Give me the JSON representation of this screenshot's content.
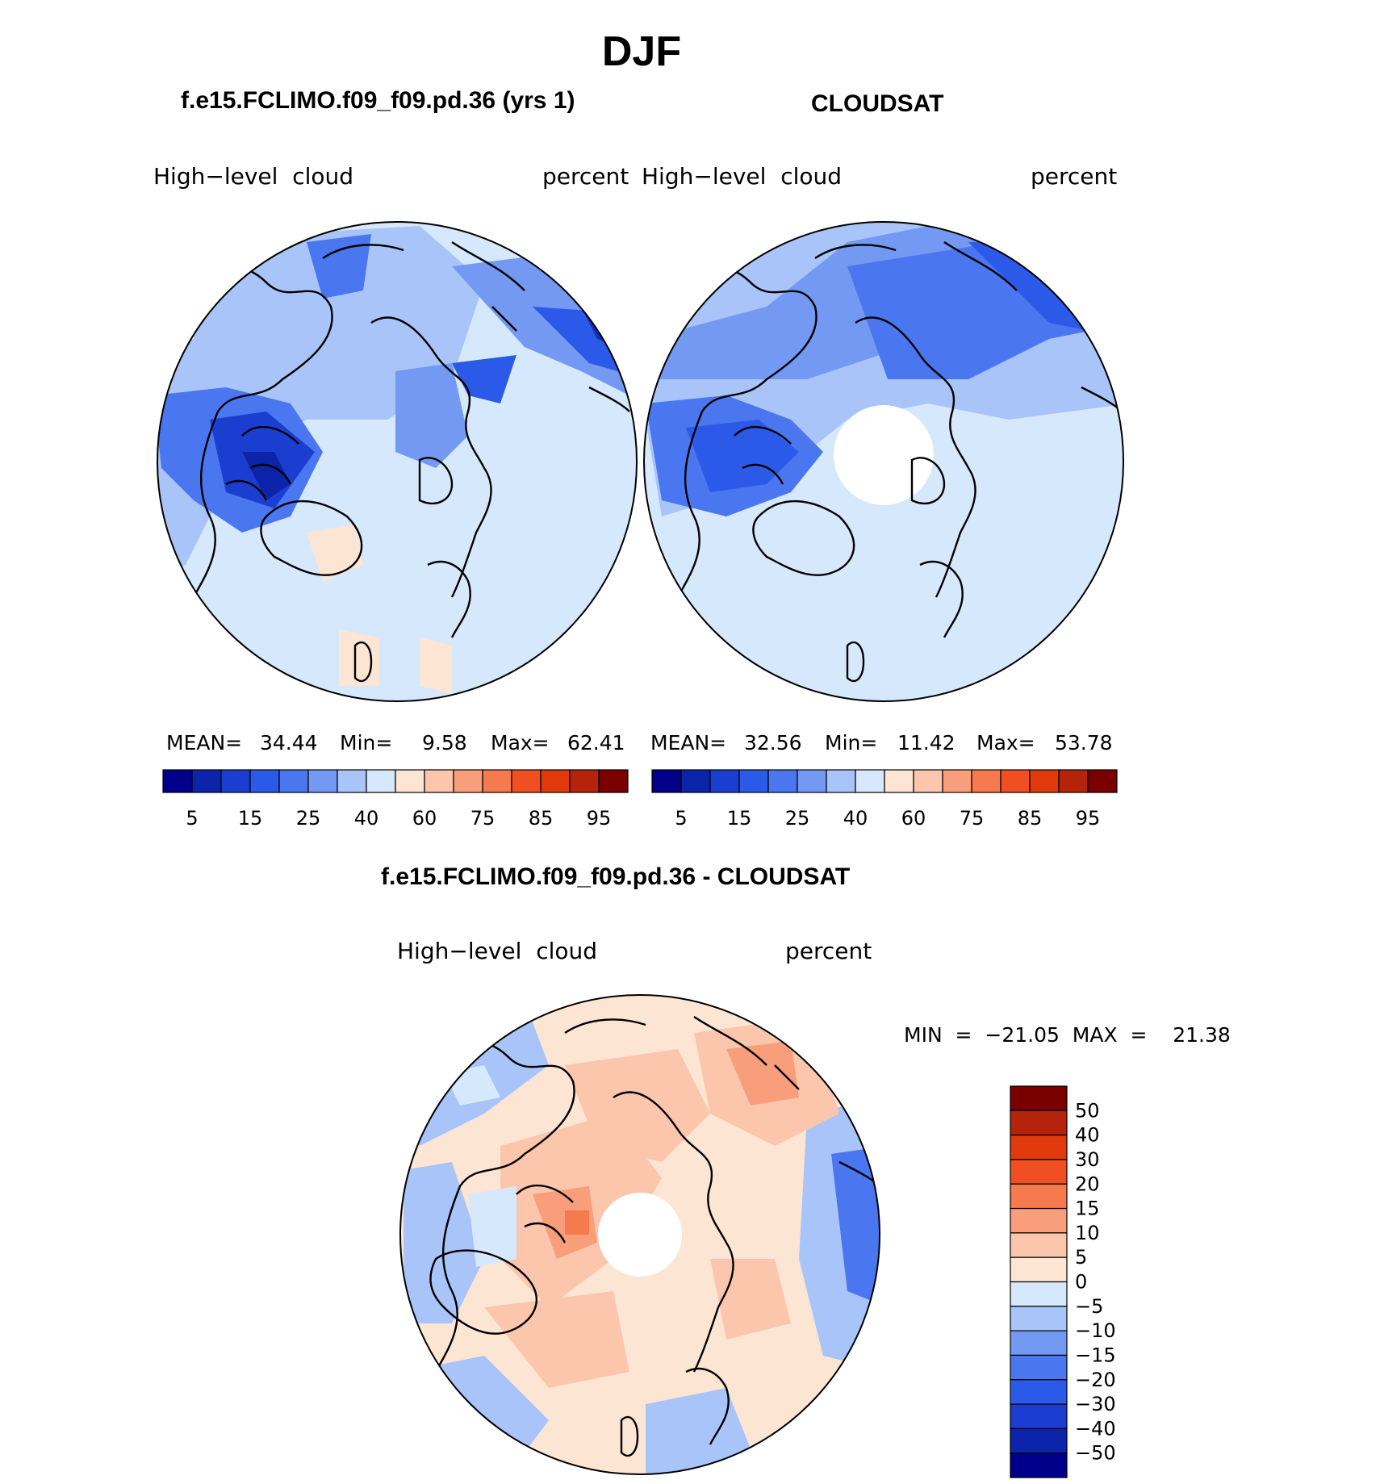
{
  "figure": {
    "title": "DJF",
    "bottom_title": "f.e15.FCLIMO.f09_f09.pd.36 - CLOUDSAT"
  },
  "panels": [
    {
      "title": "f.e15.FCLIMO.f09_f09.pd.36 (yrs 1)",
      "left_label": "High−level  cloud",
      "right_label": "percent",
      "stats": {
        "mean_label": "MEAN=",
        "mean": "34.44",
        "min_label": "Min=",
        "min": "9.58",
        "max_label": "Max=",
        "max": "62.41"
      }
    },
    {
      "title": "CLOUDSAT",
      "left_label": "High−level  cloud",
      "right_label": "percent",
      "stats": {
        "mean_label": "MEAN=",
        "mean": "32.56",
        "min_label": "Min=",
        "min": "11.42",
        "max_label": "Max=",
        "max": "53.78"
      }
    },
    {
      "title": "f.e15.FCLIMO.f09_f09.pd.36 - CLOUDSAT",
      "left_label": "High−level  cloud",
      "right_label": "percent",
      "stats_text": "MIN  =  −21.05  MAX  =    21.38"
    }
  ],
  "colorbar_abs": {
    "colors": [
      "#00008b",
      "#0b24a9",
      "#1a3fd0",
      "#2c5ae8",
      "#4a76f0",
      "#7399f3",
      "#a8c4f8",
      "#d6e8fb",
      "#fde5d4",
      "#fcc6ac",
      "#f89e7a",
      "#f57a4d",
      "#f04f22",
      "#e03a0c",
      "#b5230a",
      "#7a0000"
    ],
    "tick_labels": [
      "5",
      "15",
      "25",
      "40",
      "60",
      "75",
      "85",
      "95"
    ]
  },
  "colorbar_diff": {
    "colors": [
      "#00008b",
      "#0b24a9",
      "#1a3fd0",
      "#2c5ae8",
      "#4a76f0",
      "#7399f3",
      "#a8c4f8",
      "#d6e8fb",
      "#fde5d4",
      "#fcc6ac",
      "#f89e7a",
      "#f57a4d",
      "#f04f22",
      "#e03a0c",
      "#b5230a",
      "#7a0000"
    ],
    "tick_labels": [
      "−50",
      "−40",
      "−30",
      "−20",
      "−15",
      "−10",
      "−5",
      "0",
      "5",
      "10",
      "15",
      "20",
      "30",
      "40",
      "50"
    ]
  },
  "chart_data": [
    {
      "type": "heatmap",
      "projection": "polar stereographic (north pole)",
      "title": "f.e15.FCLIMO.f09_f09.pd.36 (yrs 1)",
      "variable": "High-level cloud",
      "units": "percent",
      "levels": [
        5,
        10,
        15,
        20,
        25,
        30,
        40,
        50,
        60,
        70,
        75,
        80,
        85,
        90,
        95
      ],
      "mean": 34.44,
      "min": 9.58,
      "max": 62.41
    },
    {
      "type": "heatmap",
      "projection": "polar stereographic (north pole)",
      "title": "CLOUDSAT",
      "variable": "High-level cloud",
      "units": "percent",
      "levels": [
        5,
        10,
        15,
        20,
        25,
        30,
        40,
        50,
        60,
        70,
        75,
        80,
        85,
        90,
        95
      ],
      "mean": 32.56,
      "min": 11.42,
      "max": 53.78
    },
    {
      "type": "heatmap",
      "projection": "polar stereographic (north pole)",
      "title": "f.e15.FCLIMO.f09_f09.pd.36 - CLOUDSAT",
      "variable": "High-level cloud",
      "units": "percent",
      "levels": [
        -50,
        -40,
        -30,
        -20,
        -15,
        -10,
        -5,
        0,
        5,
        10,
        15,
        20,
        30,
        40,
        50
      ],
      "min": -21.05,
      "max": 21.38
    }
  ]
}
